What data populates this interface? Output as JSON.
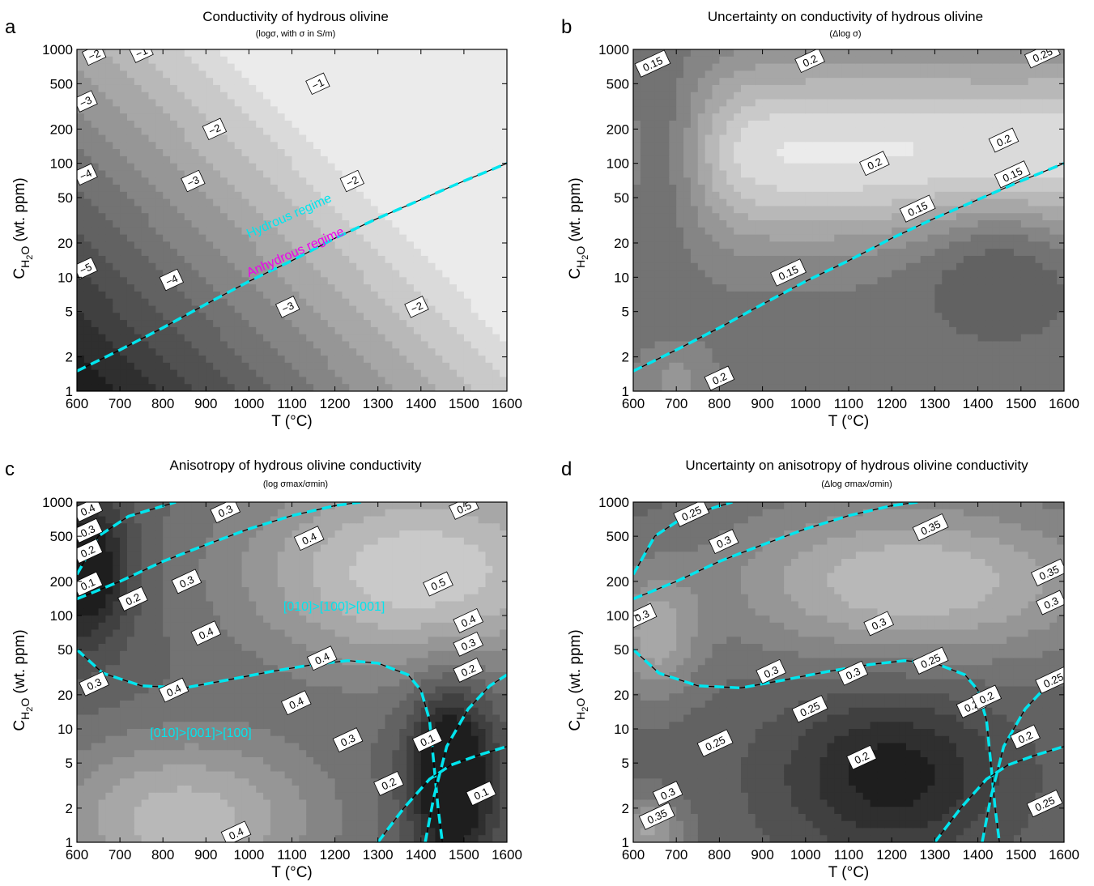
{
  "chart_data": [
    {
      "type": "heatmap",
      "panel_letter": "a",
      "title": "Conductivity of hydrous olivine",
      "subtitle": "(logσ, with σ in S/m)",
      "xlabel": "T (°C)",
      "ylabel": "C_H2O (wt. ppm)",
      "ylabel_main": "C",
      "ylabel_sub_h": "H",
      "ylabel_sub_2": "2",
      "ylabel_o": "O",
      "ylabel_rest": "(wt. ppm)",
      "xlim": [
        600,
        1600
      ],
      "ylim": [
        1,
        1000
      ],
      "yscale": "log",
      "x_ticks": [
        600,
        700,
        800,
        900,
        1000,
        1100,
        1200,
        1300,
        1400,
        1500,
        1600
      ],
      "x_tick_labels": [
        "600",
        "700",
        "800",
        "900",
        "1000",
        "1100",
        "1200",
        "1300",
        "1400",
        "1500",
        "1600"
      ],
      "y_ticks": [
        1,
        2,
        5,
        10,
        20,
        50,
        100,
        200,
        500,
        1000
      ],
      "y_tick_labels": [
        "1",
        "2",
        "5",
        "10",
        "20",
        "50",
        "100",
        "200",
        "500",
        "1000"
      ],
      "colormap": "gray",
      "value_range": [
        -5.6,
        -0.6
      ],
      "contour_labels": [
        {
          "x": 640,
          "y": 900,
          "text": "−2"
        },
        {
          "x": 750,
          "y": 950,
          "text": "−1"
        },
        {
          "x": 620,
          "y": 350,
          "text": "−3"
        },
        {
          "x": 1160,
          "y": 500,
          "text": "−1"
        },
        {
          "x": 920,
          "y": 200,
          "text": "−2"
        },
        {
          "x": 620,
          "y": 80,
          "text": "−4"
        },
        {
          "x": 870,
          "y": 70,
          "text": "−3"
        },
        {
          "x": 1240,
          "y": 70,
          "text": "−2"
        },
        {
          "x": 620,
          "y": 12,
          "text": "−5"
        },
        {
          "x": 820,
          "y": 9.5,
          "text": "−4"
        },
        {
          "x": 1090,
          "y": 5.5,
          "text": "−3"
        },
        {
          "x": 1390,
          "y": 5.5,
          "text": "−2"
        }
      ],
      "annotations": [
        {
          "text": "Hydrous regime",
          "color": "#00e5ee"
        },
        {
          "text": "Anhydrous regime",
          "color": "#ee00ee"
        }
      ],
      "boundary_lines": [
        {
          "color": "#00e5ee",
          "points": [
            [
              600,
              1.5
            ],
            [
              700,
              2.3
            ],
            [
              800,
              3.6
            ],
            [
              900,
              5.8
            ],
            [
              1000,
              9.2
            ],
            [
              1100,
              14
            ],
            [
              1200,
              22
            ],
            [
              1300,
              33
            ],
            [
              1400,
              48
            ],
            [
              1500,
              70
            ],
            [
              1600,
              100
            ]
          ]
        }
      ]
    },
    {
      "type": "heatmap",
      "panel_letter": "b",
      "title": "Uncertainty on conductivity of hydrous olivine",
      "subtitle": "(Δlog σ)",
      "xlabel": "T (°C)",
      "ylabel": "C_H2O (wt. ppm)",
      "ylabel_main": "C",
      "ylabel_sub_h": "H",
      "ylabel_sub_2": "2",
      "ylabel_o": "O",
      "ylabel_rest": "(wt. ppm)",
      "xlim": [
        600,
        1600
      ],
      "ylim": [
        1,
        1000
      ],
      "yscale": "log",
      "x_ticks": [
        600,
        700,
        800,
        900,
        1000,
        1100,
        1200,
        1300,
        1400,
        1500,
        1600
      ],
      "x_tick_labels": [
        "600",
        "700",
        "800",
        "900",
        "1000",
        "1100",
        "1200",
        "1300",
        "1400",
        "1500",
        "1600"
      ],
      "y_ticks": [
        1,
        2,
        5,
        10,
        20,
        50,
        100,
        200,
        500,
        1000
      ],
      "y_tick_labels": [
        "1",
        "2",
        "5",
        "10",
        "20",
        "50",
        "100",
        "200",
        "500",
        "1000"
      ],
      "colormap": "gray",
      "value_range": [
        0.12,
        0.3
      ],
      "contour_labels": [
        {
          "x": 645,
          "y": 750,
          "text": "0.15"
        },
        {
          "x": 1010,
          "y": 800,
          "text": "0.2"
        },
        {
          "x": 1550,
          "y": 900,
          "text": "0.25"
        },
        {
          "x": 1460,
          "y": 160,
          "text": "0.2"
        },
        {
          "x": 1160,
          "y": 100,
          "text": "0.2"
        },
        {
          "x": 1480,
          "y": 80,
          "text": "0.15"
        },
        {
          "x": 1260,
          "y": 40,
          "text": "0.15"
        },
        {
          "x": 960,
          "y": 11,
          "text": "0.15"
        },
        {
          "x": 800,
          "y": 1.3,
          "text": "0.2"
        }
      ],
      "annotations": [],
      "boundary_lines": [
        {
          "color": "#00e5ee",
          "points": [
            [
              600,
              1.5
            ],
            [
              700,
              2.3
            ],
            [
              800,
              3.6
            ],
            [
              900,
              5.8
            ],
            [
              1000,
              9.2
            ],
            [
              1100,
              14
            ],
            [
              1200,
              22
            ],
            [
              1300,
              33
            ],
            [
              1400,
              48
            ],
            [
              1500,
              70
            ],
            [
              1600,
              100
            ]
          ]
        }
      ]
    },
    {
      "type": "heatmap",
      "panel_letter": "c",
      "title": "Anisotropy of hydrous olivine conductivity",
      "subtitle": "(log σmax/σmin)",
      "xlabel": "T (°C)",
      "ylabel": "C_H2O (wt. ppm)",
      "ylabel_main": "C",
      "ylabel_sub_h": "H",
      "ylabel_sub_2": "2",
      "ylabel_o": "O",
      "ylabel_rest": "(wt. ppm)",
      "xlim": [
        600,
        1600
      ],
      "ylim": [
        1,
        1000
      ],
      "yscale": "log",
      "x_ticks": [
        600,
        700,
        800,
        900,
        1000,
        1100,
        1200,
        1300,
        1400,
        1500,
        1600
      ],
      "x_tick_labels": [
        "600",
        "700",
        "800",
        "900",
        "1000",
        "1100",
        "1200",
        "1300",
        "1400",
        "1500",
        "1600"
      ],
      "y_ticks": [
        1,
        2,
        5,
        10,
        20,
        50,
        100,
        200,
        500,
        1000
      ],
      "y_tick_labels": [
        "1",
        "2",
        "5",
        "10",
        "20",
        "50",
        "100",
        "200",
        "500",
        "1000"
      ],
      "colormap": "gray",
      "value_range": [
        0.0,
        0.6
      ],
      "contour_labels": [
        {
          "x": 625,
          "y": 860,
          "text": "0.4"
        },
        {
          "x": 625,
          "y": 560,
          "text": "0.3"
        },
        {
          "x": 625,
          "y": 370,
          "text": "0.2"
        },
        {
          "x": 625,
          "y": 190,
          "text": "0.1"
        },
        {
          "x": 730,
          "y": 140,
          "text": "0.2"
        },
        {
          "x": 855,
          "y": 200,
          "text": "0.3"
        },
        {
          "x": 945,
          "y": 840,
          "text": "0.3"
        },
        {
          "x": 1140,
          "y": 480,
          "text": "0.4"
        },
        {
          "x": 1500,
          "y": 900,
          "text": "0.5"
        },
        {
          "x": 1440,
          "y": 190,
          "text": "0.5"
        },
        {
          "x": 900,
          "y": 70,
          "text": "0.4"
        },
        {
          "x": 1170,
          "y": 42,
          "text": "0.4"
        },
        {
          "x": 1510,
          "y": 90,
          "text": "0.4"
        },
        {
          "x": 1510,
          "y": 56,
          "text": "0.3"
        },
        {
          "x": 1510,
          "y": 33,
          "text": "0.2"
        },
        {
          "x": 640,
          "y": 25,
          "text": "0.3"
        },
        {
          "x": 825,
          "y": 22,
          "text": "0.4"
        },
        {
          "x": 1110,
          "y": 17,
          "text": "0.4"
        },
        {
          "x": 1230,
          "y": 8,
          "text": "0.3"
        },
        {
          "x": 1325,
          "y": 3.3,
          "text": "0.2"
        },
        {
          "x": 1415,
          "y": 8,
          "text": "0.1"
        },
        {
          "x": 1540,
          "y": 2.7,
          "text": "0.1"
        },
        {
          "x": 970,
          "y": 1.2,
          "text": "0.4"
        }
      ],
      "annotations": [
        {
          "text": "[010]>[100]>[001]",
          "color": "#00e5ee"
        },
        {
          "text": "[010]>[001]>[100]",
          "color": "#00e5ee"
        }
      ],
      "boundary_lines": [
        {
          "color": "#00e5ee",
          "points": [
            [
              600,
              140
            ],
            [
              700,
              200
            ],
            [
              800,
              300
            ],
            [
              900,
              420
            ],
            [
              1000,
              580
            ],
            [
              1100,
              760
            ],
            [
              1200,
              930
            ],
            [
              1260,
              1000
            ]
          ]
        },
        {
          "color": "#00e5ee",
          "points": [
            [
              600,
              230
            ],
            [
              650,
              500
            ],
            [
              720,
              750
            ],
            [
              790,
              900
            ],
            [
              830,
              1000
            ]
          ]
        },
        {
          "color": "#00e5ee",
          "points": [
            [
              600,
              50
            ],
            [
              660,
              31
            ],
            [
              750,
              24
            ],
            [
              850,
              23
            ],
            [
              950,
              27
            ],
            [
              1050,
              32
            ],
            [
              1150,
              37
            ],
            [
              1230,
              40
            ],
            [
              1300,
              38
            ],
            [
              1370,
              30
            ],
            [
              1400,
              22
            ],
            [
              1420,
              12
            ],
            [
              1430,
              5
            ],
            [
              1440,
              2
            ],
            [
              1450,
              1
            ]
          ]
        },
        {
          "color": "#00e5ee",
          "points": [
            [
              1410,
              1
            ],
            [
              1430,
              2.5
            ],
            [
              1460,
              7
            ],
            [
              1510,
              15
            ],
            [
              1560,
              24
            ],
            [
              1600,
              30
            ]
          ]
        },
        {
          "color": "#00e5ee",
          "points": [
            [
              1300,
              1
            ],
            [
              1360,
              2
            ],
            [
              1420,
              3.6
            ],
            [
              1470,
              4.8
            ],
            [
              1530,
              5.8
            ],
            [
              1600,
              7
            ]
          ]
        }
      ]
    },
    {
      "type": "heatmap",
      "panel_letter": "d",
      "title": "Uncertainty on anisotropy of hydrous olivine conductivity",
      "subtitle": "(Δlog σmax/σmin)",
      "xlabel": "T (°C)",
      "ylabel": "C_H2O (wt. ppm)",
      "ylabel_main": "C",
      "ylabel_sub_h": "H",
      "ylabel_sub_2": "2",
      "ylabel_o": "O",
      "ylabel_rest": "(wt. ppm)",
      "xlim": [
        600,
        1600
      ],
      "ylim": [
        1,
        1000
      ],
      "yscale": "log",
      "x_ticks": [
        600,
        700,
        800,
        900,
        1000,
        1100,
        1200,
        1300,
        1400,
        1500,
        1600
      ],
      "x_tick_labels": [
        "600",
        "700",
        "800",
        "900",
        "1000",
        "1100",
        "1200",
        "1300",
        "1400",
        "1500",
        "1600"
      ],
      "y_ticks": [
        1,
        2,
        5,
        10,
        20,
        50,
        100,
        200,
        500,
        1000
      ],
      "y_tick_labels": [
        "1",
        "2",
        "5",
        "10",
        "20",
        "50",
        "100",
        "200",
        "500",
        "1000"
      ],
      "colormap": "gray",
      "value_range": [
        0.15,
        0.4
      ],
      "contour_labels": [
        {
          "x": 735,
          "y": 800,
          "text": "0.25"
        },
        {
          "x": 810,
          "y": 450,
          "text": "0.3"
        },
        {
          "x": 1290,
          "y": 600,
          "text": "0.35"
        },
        {
          "x": 1565,
          "y": 240,
          "text": "0.35"
        },
        {
          "x": 1570,
          "y": 130,
          "text": "0.3"
        },
        {
          "x": 620,
          "y": 100,
          "text": "0.3"
        },
        {
          "x": 1170,
          "y": 85,
          "text": "0.3"
        },
        {
          "x": 1290,
          "y": 40,
          "text": "0.25"
        },
        {
          "x": 920,
          "y": 32,
          "text": "0.3"
        },
        {
          "x": 1110,
          "y": 31,
          "text": "0.3"
        },
        {
          "x": 1010,
          "y": 15,
          "text": "0.25"
        },
        {
          "x": 1385,
          "y": 16,
          "text": "0.2"
        },
        {
          "x": 1420,
          "y": 19,
          "text": "0.2"
        },
        {
          "x": 1575,
          "y": 27,
          "text": "0.25"
        },
        {
          "x": 1510,
          "y": 8.5,
          "text": "0.2"
        },
        {
          "x": 790,
          "y": 7.5,
          "text": "0.25"
        },
        {
          "x": 1130,
          "y": 5.6,
          "text": "0.2"
        },
        {
          "x": 680,
          "y": 2.7,
          "text": "0.3"
        },
        {
          "x": 655,
          "y": 1.7,
          "text": "0.35"
        },
        {
          "x": 1555,
          "y": 2.2,
          "text": "0.25"
        }
      ],
      "annotations": [],
      "boundary_lines": [
        {
          "color": "#00e5ee",
          "points": [
            [
              600,
              140
            ],
            [
              700,
              200
            ],
            [
              800,
              300
            ],
            [
              900,
              420
            ],
            [
              1000,
              580
            ],
            [
              1100,
              760
            ],
            [
              1200,
              930
            ],
            [
              1260,
              1000
            ]
          ]
        },
        {
          "color": "#00e5ee",
          "points": [
            [
              600,
              230
            ],
            [
              650,
              500
            ],
            [
              720,
              750
            ],
            [
              790,
              900
            ],
            [
              830,
              1000
            ]
          ]
        },
        {
          "color": "#00e5ee",
          "points": [
            [
              600,
              50
            ],
            [
              660,
              31
            ],
            [
              750,
              24
            ],
            [
              850,
              23
            ],
            [
              950,
              27
            ],
            [
              1050,
              32
            ],
            [
              1150,
              37
            ],
            [
              1230,
              40
            ],
            [
              1300,
              38
            ],
            [
              1370,
              30
            ],
            [
              1400,
              22
            ],
            [
              1420,
              12
            ],
            [
              1430,
              5
            ],
            [
              1440,
              2
            ],
            [
              1450,
              1
            ]
          ]
        },
        {
          "color": "#00e5ee",
          "points": [
            [
              1410,
              1
            ],
            [
              1430,
              2.5
            ],
            [
              1460,
              7
            ],
            [
              1510,
              15
            ],
            [
              1560,
              24
            ],
            [
              1600,
              30
            ]
          ]
        },
        {
          "color": "#00e5ee",
          "points": [
            [
              1300,
              1
            ],
            [
              1360,
              2
            ],
            [
              1420,
              3.6
            ],
            [
              1470,
              4.8
            ],
            [
              1530,
              5.8
            ],
            [
              1600,
              7
            ]
          ]
        }
      ]
    }
  ]
}
